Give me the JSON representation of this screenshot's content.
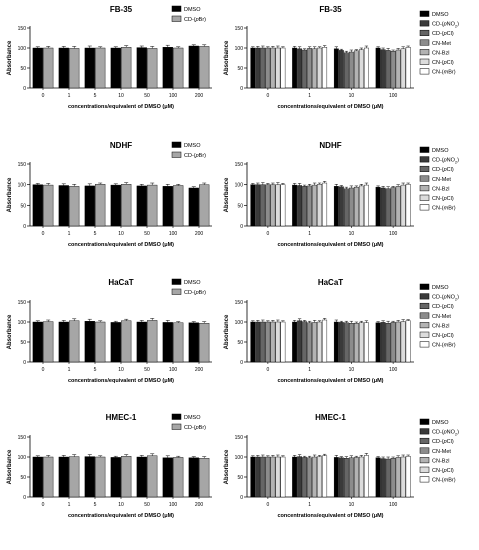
{
  "colors": {
    "dmso": "#000000",
    "grey": "#a6a6a6",
    "series": [
      "#000000",
      "#3a3a3a",
      "#666666",
      "#8c8c8c",
      "#b3b3b3",
      "#dcdcdc",
      "#ffffff"
    ]
  },
  "chart_data": [
    {
      "type": "bar",
      "title": "FB-35",
      "ylabel": "Absorbance",
      "xlabel": "concentrations/equivalent of DMSO (μM)",
      "categories": [
        "0",
        "1",
        "5",
        "10",
        "50",
        "100",
        "200"
      ],
      "ylim": [
        0,
        150
      ],
      "yticks": [
        0,
        50,
        100,
        150
      ],
      "legend": {
        "placement": "top-right"
      },
      "series": [
        {
          "name": "DMSO",
          "values": [
            100,
            100,
            100,
            100,
            101,
            102,
            105
          ]
        },
        {
          "name": "CD-(pBr)",
          "values": [
            100,
            99,
            100,
            102,
            99,
            100,
            104
          ]
        }
      ]
    },
    {
      "type": "bar",
      "title": "FB-35",
      "ylabel": "Absorbance",
      "xlabel": "concentrations/equivalent of DMSO (μM)",
      "categories": [
        "0",
        "1",
        "10",
        "100"
      ],
      "ylim": [
        0,
        150
      ],
      "yticks": [
        0,
        50,
        100,
        150
      ],
      "legend": {
        "placement": "right"
      },
      "series": [
        {
          "name": "DMSO",
          "values": [
            100,
            100,
            98,
            100
          ]
        },
        {
          "name": "CD-(pNO2)",
          "values": [
            100,
            98,
            94,
            96
          ]
        },
        {
          "name": "CD-(pCl)",
          "values": [
            100,
            95,
            88,
            94
          ]
        },
        {
          "name": "CN-Met",
          "values": [
            100,
            99,
            90,
            92
          ]
        },
        {
          "name": "CN-Bzl",
          "values": [
            100,
            98,
            93,
            95
          ]
        },
        {
          "name": "CN-(pCl)",
          "values": [
            100,
            100,
            96,
            98
          ]
        },
        {
          "name": "CN-(mBr)",
          "values": [
            100,
            102,
            100,
            102
          ]
        }
      ]
    },
    {
      "type": "bar",
      "title": "NDHF",
      "ylabel": "Absorbance",
      "xlabel": "concentrations/equivalent of DMSO (μM)",
      "categories": [
        "0",
        "1",
        "5",
        "10",
        "50",
        "100",
        "200"
      ],
      "ylim": [
        0,
        150
      ],
      "yticks": [
        0,
        50,
        100,
        150
      ],
      "legend": {
        "placement": "top-right"
      },
      "series": [
        {
          "name": "DMSO",
          "values": [
            100,
            98,
            97,
            99,
            97,
            96,
            92
          ]
        },
        {
          "name": "CD-(pBr)",
          "values": [
            99,
            96,
            101,
            101,
            99,
            98,
            100
          ]
        }
      ]
    },
    {
      "type": "bar",
      "title": "NDHF",
      "ylabel": "Absorbance",
      "xlabel": "concentrations/equivalent of DMSO (μM)",
      "categories": [
        "0",
        "1",
        "10",
        "100"
      ],
      "ylim": [
        0,
        150
      ],
      "yticks": [
        0,
        50,
        100,
        150
      ],
      "legend": {
        "placement": "right"
      },
      "series": [
        {
          "name": "DMSO",
          "values": [
            100,
            99,
            96,
            94
          ]
        },
        {
          "name": "CD-(pNO2)",
          "values": [
            100,
            98,
            95,
            92
          ]
        },
        {
          "name": "CD-(pCl)",
          "values": [
            100,
            96,
            90,
            90
          ]
        },
        {
          "name": "CN-Met",
          "values": [
            100,
            97,
            92,
            93
          ]
        },
        {
          "name": "CN-Bzl",
          "values": [
            100,
            99,
            94,
            96
          ]
        },
        {
          "name": "CN-(pCl)",
          "values": [
            100,
            101,
            97,
            99
          ]
        },
        {
          "name": "CN-(mBr)",
          "values": [
            100,
            104,
            99,
            101
          ]
        }
      ]
    },
    {
      "type": "bar",
      "title": "HaCaT",
      "ylabel": "Absorbance",
      "xlabel": "concentrations/equivalent of DMSO (μM)",
      "categories": [
        "0",
        "1",
        "5",
        "10",
        "50",
        "100",
        "200"
      ],
      "ylim": [
        0,
        150
      ],
      "yticks": [
        0,
        50,
        100,
        150
      ],
      "legend": {
        "placement": "top-right"
      },
      "series": [
        {
          "name": "DMSO",
          "values": [
            100,
            100,
            102,
            99,
            100,
            99,
            98
          ]
        },
        {
          "name": "CD-(pBr)",
          "values": [
            101,
            103,
            100,
            103,
            104,
            98,
            97
          ]
        }
      ]
    },
    {
      "type": "bar",
      "title": "HaCaT",
      "ylabel": "Absorbance",
      "xlabel": "concentrations/equivalent of DMSO (μM)",
      "categories": [
        "0",
        "1",
        "10",
        "100"
      ],
      "ylim": [
        0,
        150
      ],
      "yticks": [
        0,
        50,
        100,
        150
      ],
      "legend": {
        "placement": "right"
      },
      "series": [
        {
          "name": "DMSO",
          "values": [
            100,
            100,
            100,
            98
          ]
        },
        {
          "name": "CD-(pNO2)",
          "values": [
            100,
            103,
            99,
            99
          ]
        },
        {
          "name": "CD-(pCl)",
          "values": [
            100,
            101,
            98,
            97
          ]
        },
        {
          "name": "CN-Met",
          "values": [
            100,
            98,
            97,
            99
          ]
        },
        {
          "name": "CN-Bzl",
          "values": [
            100,
            99,
            97,
            100
          ]
        },
        {
          "name": "CN-(pCl)",
          "values": [
            100,
            100,
            98,
            101
          ]
        },
        {
          "name": "CN-(mBr)",
          "values": [
            100,
            105,
            98,
            103
          ]
        }
      ]
    },
    {
      "type": "bar",
      "title": "HMEC-1",
      "ylabel": "Absorbance",
      "xlabel": "concentrations/equivalent of DMSO (μM)",
      "categories": [
        "0",
        "1",
        "5",
        "10",
        "50",
        "100",
        "200"
      ],
      "ylim": [
        0,
        150
      ],
      "yticks": [
        0,
        50,
        100,
        150
      ],
      "legend": {
        "placement": "top-right"
      },
      "series": [
        {
          "name": "DMSO",
          "values": [
            100,
            100,
            101,
            99,
            100,
            98,
            98
          ]
        },
        {
          "name": "CD-(pBr)",
          "values": [
            100,
            101,
            100,
            102,
            103,
            99,
            97
          ]
        }
      ]
    },
    {
      "type": "bar",
      "title": "HMEC-1",
      "ylabel": "Absorbance",
      "xlabel": "concentrations/equivalent of DMSO (μM)",
      "categories": [
        "0",
        "1",
        "10",
        "100"
      ],
      "ylim": [
        0,
        150
      ],
      "yticks": [
        0,
        50,
        100,
        150
      ],
      "legend": {
        "placement": "right"
      },
      "series": [
        {
          "name": "DMSO",
          "values": [
            100,
            100,
            99,
            98
          ]
        },
        {
          "name": "CD-(pNO2)",
          "values": [
            100,
            101,
            98,
            96
          ]
        },
        {
          "name": "CD-(pCl)",
          "values": [
            100,
            99,
            97,
            95
          ]
        },
        {
          "name": "CN-Met",
          "values": [
            100,
            98,
            98,
            97
          ]
        },
        {
          "name": "CN-Bzl",
          "values": [
            100,
            100,
            99,
            99
          ]
        },
        {
          "name": "CN-(pCl)",
          "values": [
            100,
            101,
            100,
            100
          ]
        },
        {
          "name": "CN-(mBr)",
          "values": [
            100,
            103,
            104,
            102
          ]
        }
      ]
    }
  ]
}
